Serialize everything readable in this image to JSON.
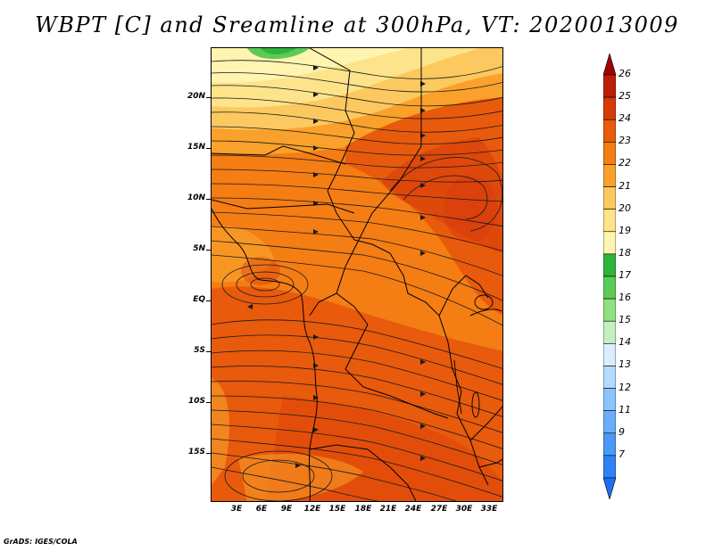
{
  "title": "WBPT [C] and Sreamline at 300hPa, VT: 2020013009",
  "footer": "GrADS: IGES/COLA",
  "map": {
    "lat_labels": [
      "20N",
      "15N",
      "10N",
      "5N",
      "EQ",
      "5S",
      "10S",
      "15S"
    ],
    "lon_labels": [
      "3E",
      "6E",
      "9E",
      "12E",
      "15E",
      "18E",
      "21E",
      "24E",
      "27E",
      "30E",
      "33E"
    ]
  },
  "colorbar": {
    "levels": [
      "7",
      "9",
      "11",
      "12",
      "13",
      "14",
      "15",
      "16",
      "17",
      "18",
      "19",
      "20",
      "21",
      "22",
      "23",
      "24",
      "25",
      "26"
    ],
    "colors": [
      "#1e6ff0",
      "#2f82f5",
      "#4a98f7",
      "#6aaefb",
      "#8dc4fd",
      "#b4dafe",
      "#dbeefe",
      "#c4f0c0",
      "#90e080",
      "#5ccb55",
      "#2fb43a",
      "#fff4b0",
      "#fde48a",
      "#fcc860",
      "#f9a12a",
      "#f47d14",
      "#e85a0c",
      "#d63a0a",
      "#be1e08",
      "#a00000"
    ]
  }
}
